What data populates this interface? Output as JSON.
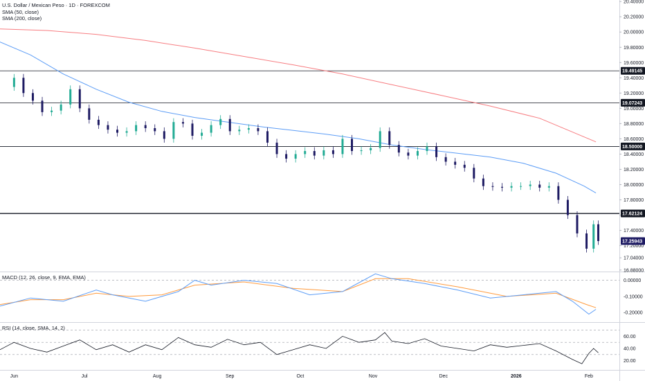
{
  "legend": {
    "title": "U.S. Dollar / Mexican Peso · 1D · FOREXCOM",
    "sma50": "SMA (50, close)",
    "sma200": "SMA (200, close)",
    "macd": "MACD (12, 26, close, 9, EMA, EMA)",
    "rsi": "RSI (14, close, SMA, 14, 2)"
  },
  "colors": {
    "up": "#26a69a",
    "up_body": "#22ab94",
    "down": "#1e1b63",
    "sma50": "#5b9cf6",
    "sma200": "#f77c80",
    "macd_line": "#5b9cf6",
    "signal_line": "#ff9a3c",
    "rsi_line": "#131722",
    "tag_bg": "#131722",
    "last_tag_bg": "#1e1b63"
  },
  "chart_data": [
    {
      "type": "candlestick",
      "title": "U.S. Dollar / Mexican Peso · 1D · FOREXCOM",
      "y_ticks": [
        "20.40000",
        "20.20000",
        "20.00000",
        "19.80000",
        "19.60000",
        "19.40000",
        "19.20000",
        "19.00000",
        "18.80000",
        "18.60000",
        "18.40000",
        "18.20000",
        "18.00000",
        "17.80000",
        "17.60000",
        "17.40000",
        "17.20000",
        "17.04000",
        "16.88000"
      ],
      "ylim": [
        16.86,
        20.42
      ],
      "horizontal_levels": [
        "19.49145",
        "19.07243",
        "18.50000",
        "17.62124"
      ],
      "last_price": "17.25943",
      "x_ticks": [
        "Jun",
        "Jul",
        "Aug",
        "Sep",
        "Oct",
        "Nov",
        "Dec",
        "2026",
        "Feb"
      ],
      "x_tick_dates": [
        "2025-06-01",
        "2025-07-01",
        "2025-08-01",
        "2025-09-01",
        "2025-10-01",
        "2025-11-01",
        "2025-12-01",
        "2026-01-01",
        "2026-02-01"
      ],
      "x_range": [
        "2025-05-26",
        "2026-02-14"
      ],
      "series": [
        {
          "name": "SMA (50, close)",
          "points": [
            [
              "2025-05-26",
              19.87
            ],
            [
              "2025-06-08",
              19.7
            ],
            [
              "2025-06-22",
              19.45
            ],
            [
              "2025-07-06",
              19.25
            ],
            [
              "2025-07-20",
              19.08
            ],
            [
              "2025-08-03",
              18.96
            ],
            [
              "2025-08-17",
              18.88
            ],
            [
              "2025-08-31",
              18.82
            ],
            [
              "2025-09-14",
              18.76
            ],
            [
              "2025-09-28",
              18.71
            ],
            [
              "2025-10-12",
              18.66
            ],
            [
              "2025-10-26",
              18.6
            ],
            [
              "2025-11-09",
              18.52
            ],
            [
              "2025-11-23",
              18.46
            ],
            [
              "2025-12-07",
              18.41
            ],
            [
              "2025-12-21",
              18.36
            ],
            [
              "2026-01-04",
              18.28
            ],
            [
              "2026-01-18",
              18.15
            ],
            [
              "2026-01-30",
              17.98
            ],
            [
              "2026-02-04",
              17.89
            ]
          ]
        },
        {
          "name": "SMA (200, close)",
          "points": [
            [
              "2025-05-26",
              20.04
            ],
            [
              "2025-06-15",
              20.02
            ],
            [
              "2025-07-06",
              19.97
            ],
            [
              "2025-07-27",
              19.89
            ],
            [
              "2025-08-17",
              19.79
            ],
            [
              "2025-09-07",
              19.68
            ],
            [
              "2025-09-28",
              19.57
            ],
            [
              "2025-10-19",
              19.45
            ],
            [
              "2025-11-09",
              19.31
            ],
            [
              "2025-11-30",
              19.17
            ],
            [
              "2025-12-21",
              19.03
            ],
            [
              "2026-01-11",
              18.87
            ],
            [
              "2026-02-04",
              18.56
            ]
          ]
        }
      ]
    },
    {
      "type": "line",
      "title": "MACD (12, 26, close, 9, EMA, EMA)",
      "y_ticks": [
        "0.00000",
        "-0.10000",
        "-0.20000"
      ],
      "ylim": [
        -0.255,
        0.05
      ],
      "series": [
        {
          "name": "MACD",
          "points": [
            [
              "2025-05-26",
              -0.16
            ],
            [
              "2025-06-08",
              -0.11
            ],
            [
              "2025-06-22",
              -0.13
            ],
            [
              "2025-07-06",
              -0.06
            ],
            [
              "2025-07-13",
              -0.09
            ],
            [
              "2025-07-27",
              -0.13
            ],
            [
              "2025-08-10",
              -0.07
            ],
            [
              "2025-08-17",
              0.0
            ],
            [
              "2025-08-24",
              -0.03
            ],
            [
              "2025-09-07",
              0.0
            ],
            [
              "2025-09-21",
              -0.02
            ],
            [
              "2025-10-05",
              -0.09
            ],
            [
              "2025-10-19",
              -0.07
            ],
            [
              "2025-11-02",
              0.04
            ],
            [
              "2025-11-09",
              0.01
            ],
            [
              "2025-11-23",
              -0.02
            ],
            [
              "2025-12-07",
              -0.06
            ],
            [
              "2025-12-21",
              -0.11
            ],
            [
              "2026-01-04",
              -0.09
            ],
            [
              "2026-01-18",
              -0.07
            ],
            [
              "2026-01-25",
              -0.13
            ],
            [
              "2026-02-01",
              -0.21
            ],
            [
              "2026-02-04",
              -0.18
            ]
          ]
        },
        {
          "name": "Signal",
          "points": [
            [
              "2025-05-26",
              -0.15
            ],
            [
              "2025-06-08",
              -0.12
            ],
            [
              "2025-06-22",
              -0.12
            ],
            [
              "2025-07-06",
              -0.08
            ],
            [
              "2025-07-20",
              -0.1
            ],
            [
              "2025-08-03",
              -0.09
            ],
            [
              "2025-08-17",
              -0.03
            ],
            [
              "2025-09-07",
              -0.01
            ],
            [
              "2025-09-28",
              -0.05
            ],
            [
              "2025-10-19",
              -0.07
            ],
            [
              "2025-11-02",
              0.01
            ],
            [
              "2025-11-16",
              0.01
            ],
            [
              "2025-12-07",
              -0.04
            ],
            [
              "2025-12-28",
              -0.1
            ],
            [
              "2026-01-18",
              -0.08
            ],
            [
              "2026-01-31",
              -0.15
            ],
            [
              "2026-02-04",
              -0.17
            ]
          ]
        }
      ]
    },
    {
      "type": "line",
      "title": "RSI (14, close, SMA, 14, 2)",
      "y_ticks": [
        "60.00",
        "40.00",
        "20.00"
      ],
      "ylim": [
        6,
        82
      ],
      "bands": [
        70,
        50,
        30
      ],
      "series": [
        {
          "name": "RSI",
          "points": [
            [
              "2025-05-26",
              38
            ],
            [
              "2025-06-01",
              50
            ],
            [
              "2025-06-08",
              40
            ],
            [
              "2025-06-15",
              34
            ],
            [
              "2025-06-22",
              44
            ],
            [
              "2025-06-29",
              54
            ],
            [
              "2025-07-06",
              38
            ],
            [
              "2025-07-13",
              46
            ],
            [
              "2025-07-20",
              34
            ],
            [
              "2025-07-27",
              46
            ],
            [
              "2025-08-03",
              38
            ],
            [
              "2025-08-10",
              58
            ],
            [
              "2025-08-17",
              46
            ],
            [
              "2025-08-24",
              42
            ],
            [
              "2025-08-31",
              55
            ],
            [
              "2025-09-07",
              46
            ],
            [
              "2025-09-14",
              50
            ],
            [
              "2025-09-21",
              30
            ],
            [
              "2025-09-28",
              38
            ],
            [
              "2025-10-05",
              46
            ],
            [
              "2025-10-12",
              40
            ],
            [
              "2025-10-19",
              60
            ],
            [
              "2025-10-26",
              50
            ],
            [
              "2025-11-02",
              54
            ],
            [
              "2025-11-06",
              66
            ],
            [
              "2025-11-09",
              52
            ],
            [
              "2025-11-16",
              48
            ],
            [
              "2025-11-23",
              56
            ],
            [
              "2025-11-30",
              44
            ],
            [
              "2025-12-07",
              40
            ],
            [
              "2025-12-14",
              36
            ],
            [
              "2025-12-21",
              46
            ],
            [
              "2025-12-28",
              42
            ],
            [
              "2026-01-04",
              45
            ],
            [
              "2026-01-11",
              48
            ],
            [
              "2026-01-18",
              36
            ],
            [
              "2026-01-25",
              22
            ],
            [
              "2026-01-29",
              15
            ],
            [
              "2026-02-01",
              32
            ],
            [
              "2026-02-03",
              40
            ],
            [
              "2026-02-05",
              33
            ]
          ]
        }
      ]
    }
  ]
}
